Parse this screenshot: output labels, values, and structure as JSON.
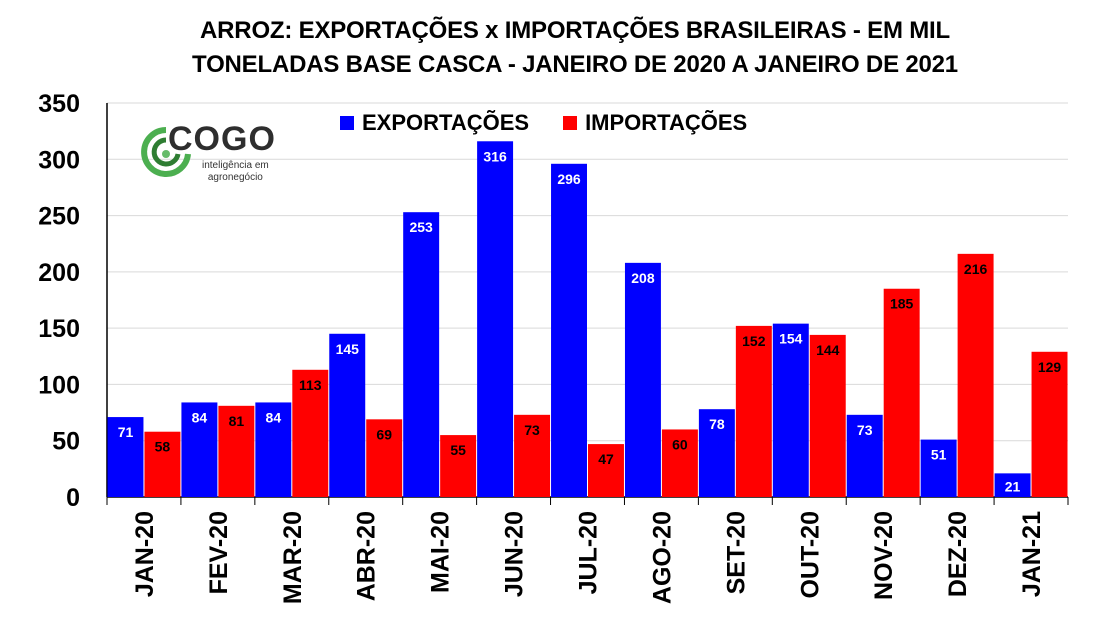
{
  "title_line1": "ARROZ: EXPORTAÇÕES x IMPORTAÇÕES BRASILEIRAS - EM MIL",
  "title_line2": "TONELADAS BASE CASCA - JANEIRO DE 2020 A JANEIRO DE 2021",
  "logo": {
    "name": "COGO",
    "tagline1": "inteligência em",
    "tagline2": "agronegócio",
    "icon": "cogo-logo-icon"
  },
  "colors": {
    "exportacoes": "#0000ff",
    "importacoes": "#ff0000",
    "grid": "#d9d9d9",
    "axis": "#000000"
  },
  "chart_data": {
    "type": "bar",
    "title": "ARROZ: EXPORTAÇÕES x IMPORTAÇÕES BRASILEIRAS - EM MIL TONELADAS BASE CASCA - JANEIRO DE 2020 A JANEIRO DE 2021",
    "categories": [
      "JAN-20",
      "FEV-20",
      "MAR-20",
      "ABR-20",
      "MAI-20",
      "JUN-20",
      "JUL-20",
      "AGO-20",
      "SET-20",
      "OUT-20",
      "NOV-20",
      "DEZ-20",
      "JAN-21"
    ],
    "series": [
      {
        "name": "EXPORTAÇÕES",
        "values": [
          71,
          84,
          84,
          145,
          253,
          316,
          296,
          208,
          78,
          154,
          73,
          51,
          21
        ]
      },
      {
        "name": "IMPORTAÇÕES",
        "values": [
          58,
          81,
          113,
          69,
          55,
          73,
          47,
          60,
          152,
          144,
          185,
          216,
          129
        ]
      }
    ],
    "ylim": [
      0,
      350
    ],
    "yticks": [
      0,
      50,
      100,
      150,
      200,
      250,
      300,
      350
    ],
    "grid": true,
    "legend": "top-center",
    "data_labels": true
  }
}
